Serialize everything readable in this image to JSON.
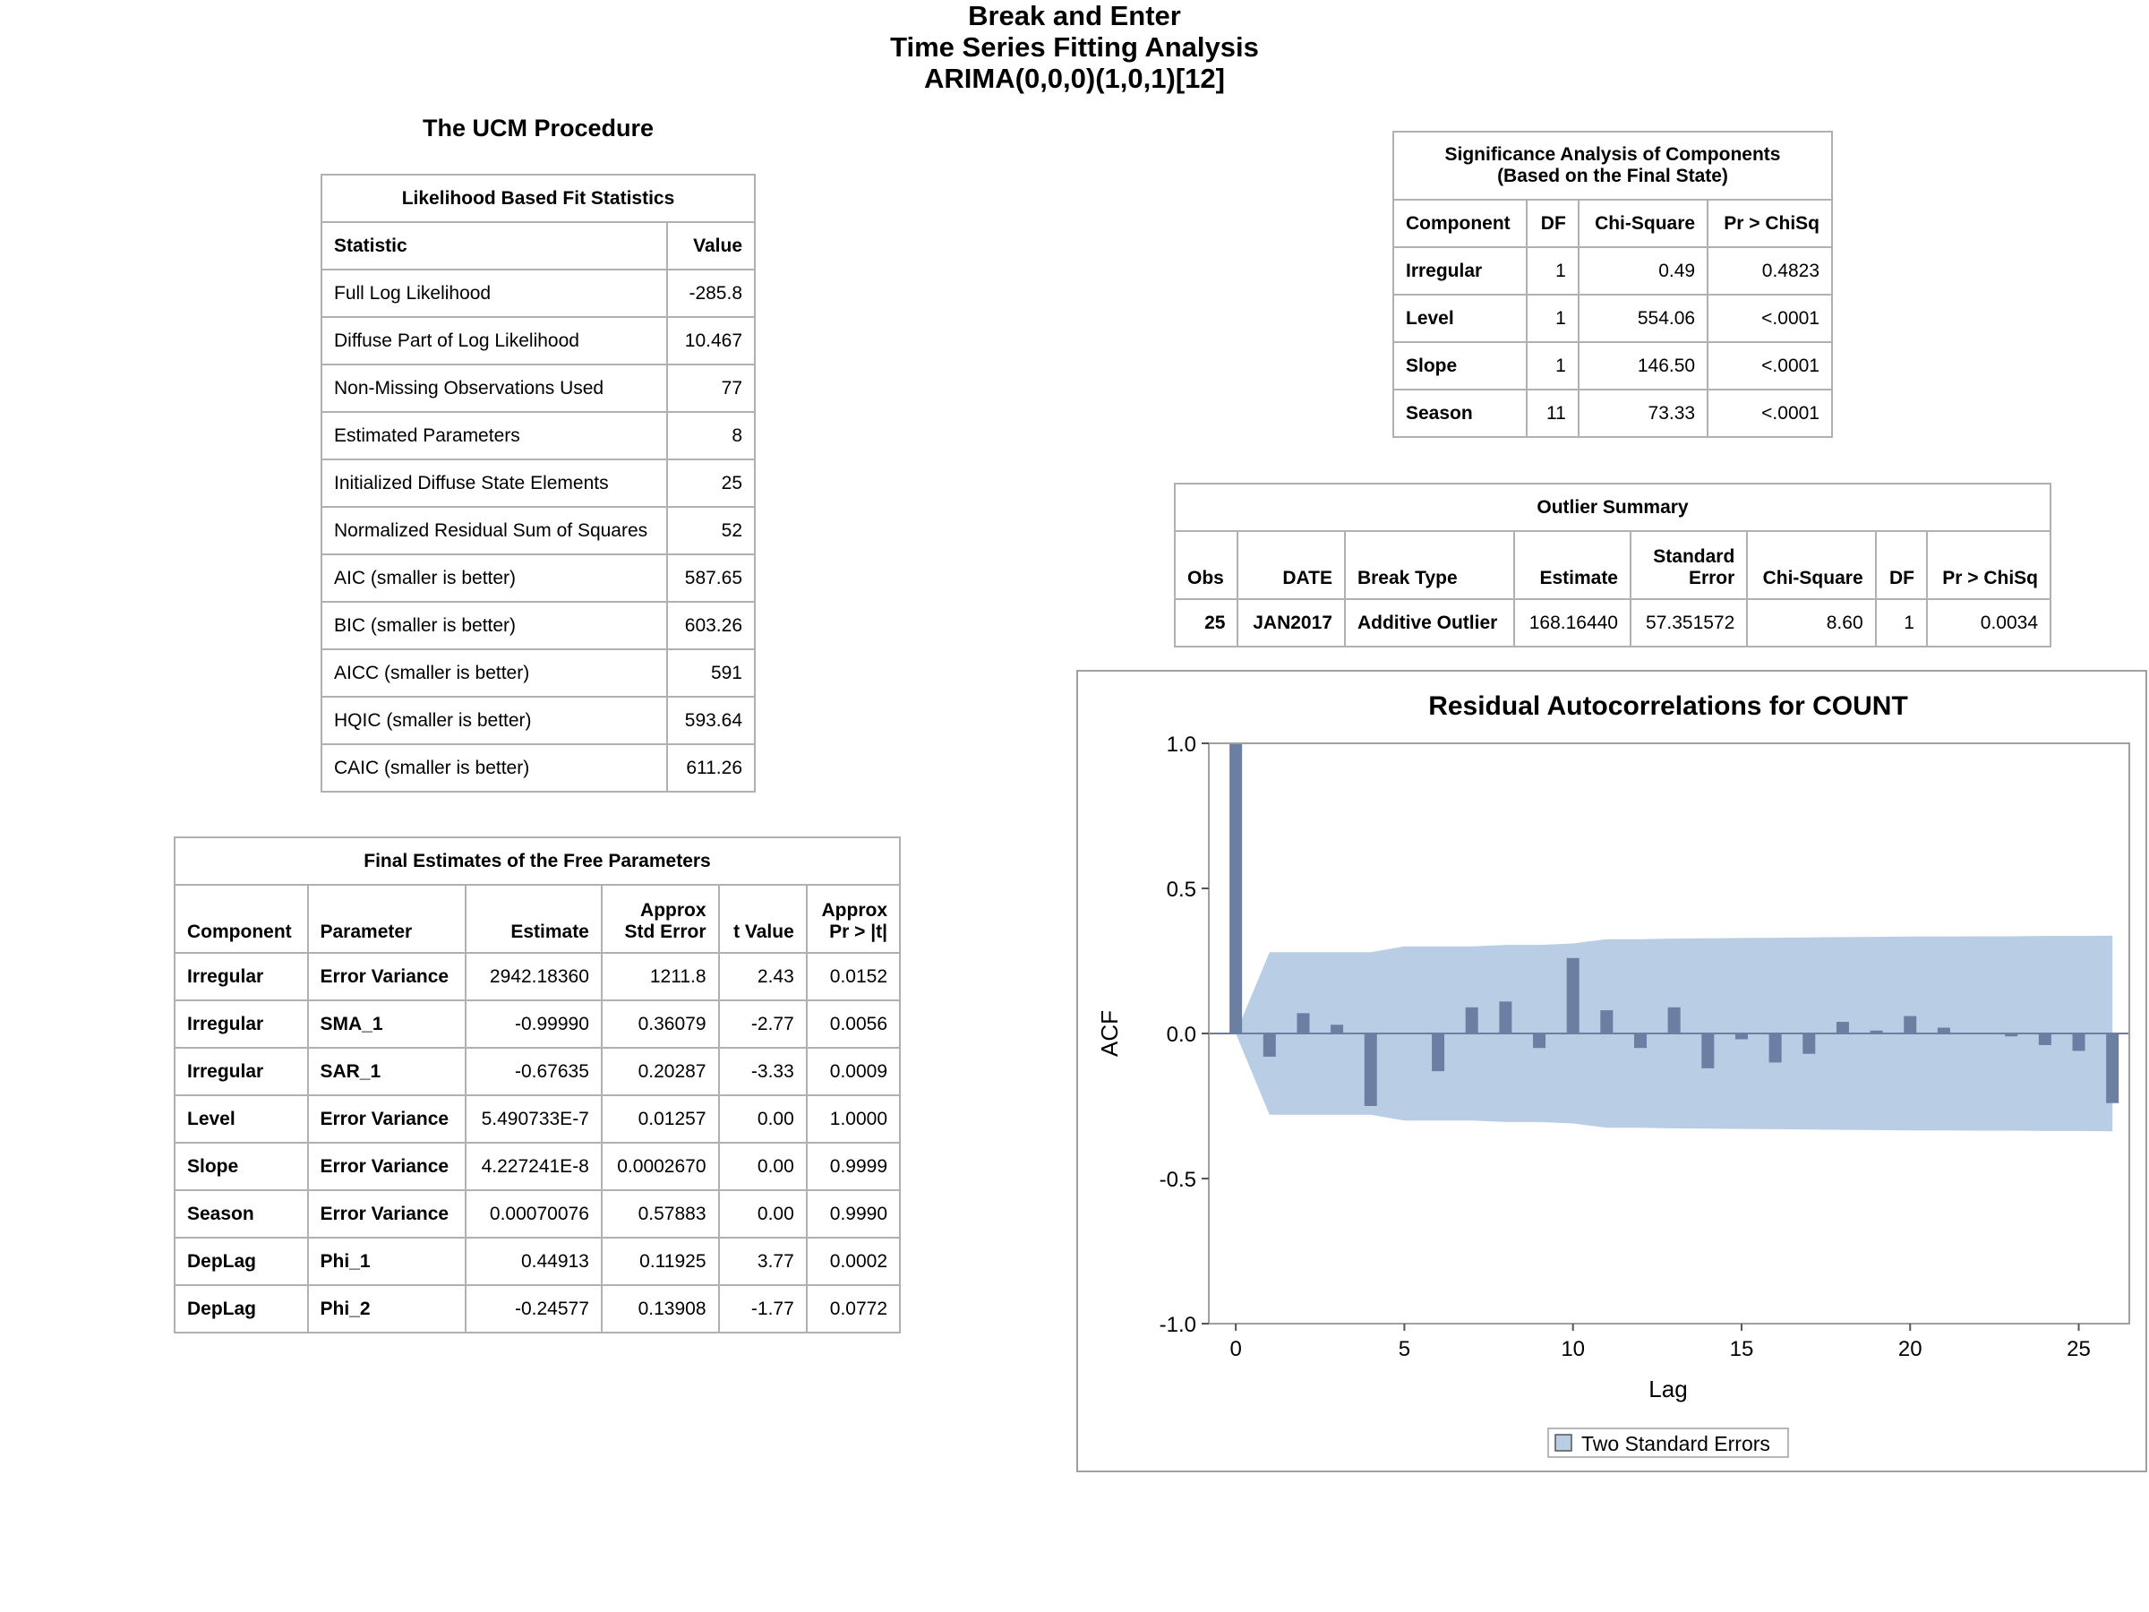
{
  "titles": [
    "Break and Enter",
    "Time Series Fitting Analysis",
    "ARIMA(0,0,0)(1,0,1)[12]"
  ],
  "procedure_title": "The UCM Procedure",
  "fit_stats": {
    "caption": "Likelihood Based Fit Statistics",
    "headers": [
      "Statistic",
      "Value"
    ],
    "rows": [
      [
        "Full Log Likelihood",
        "-285.8"
      ],
      [
        "Diffuse Part of Log Likelihood",
        "10.467"
      ],
      [
        "Non-Missing Observations Used",
        "77"
      ],
      [
        "Estimated Parameters",
        "8"
      ],
      [
        "Initialized Diffuse State Elements",
        "25"
      ],
      [
        "Normalized Residual Sum of Squares",
        "52"
      ],
      [
        "AIC (smaller is better)",
        "587.65"
      ],
      [
        "BIC (smaller is better)",
        "603.26"
      ],
      [
        "AICC (smaller is better)",
        "591"
      ],
      [
        "HQIC (smaller is better)",
        "593.64"
      ],
      [
        "CAIC (smaller is better)",
        "611.26"
      ]
    ]
  },
  "free_params": {
    "caption": "Final Estimates of the Free Parameters",
    "headers": [
      "Component",
      "Parameter",
      "Estimate",
      "Approx\nStd Error",
      "t Value",
      "Approx\nPr > |t|"
    ],
    "rows": [
      [
        "Irregular",
        "Error Variance",
        "2942.18360",
        "1211.8",
        "2.43",
        "0.0152"
      ],
      [
        "Irregular",
        "SMA_1",
        "-0.99990",
        "0.36079",
        "-2.77",
        "0.0056"
      ],
      [
        "Irregular",
        "SAR_1",
        "-0.67635",
        "0.20287",
        "-3.33",
        "0.0009"
      ],
      [
        "Level",
        "Error Variance",
        "5.490733E-7",
        "0.01257",
        "0.00",
        "1.0000"
      ],
      [
        "Slope",
        "Error Variance",
        "4.227241E-8",
        "0.0002670",
        "0.00",
        "0.9999"
      ],
      [
        "Season",
        "Error Variance",
        "0.00070076",
        "0.57883",
        "0.00",
        "0.9990"
      ],
      [
        "DepLag",
        "Phi_1",
        "0.44913",
        "0.11925",
        "3.77",
        "0.0002"
      ],
      [
        "DepLag",
        "Phi_2",
        "-0.24577",
        "0.13908",
        "-1.77",
        "0.0772"
      ]
    ]
  },
  "sig_components": {
    "caption_line1": "Significance Analysis of Components",
    "caption_line2": "(Based on the Final State)",
    "headers": [
      "Component",
      "DF",
      "Chi-Square",
      "Pr > ChiSq"
    ],
    "rows": [
      [
        "Irregular",
        "1",
        "0.49",
        "0.4823"
      ],
      [
        "Level",
        "1",
        "554.06",
        "<.0001"
      ],
      [
        "Slope",
        "1",
        "146.50",
        "<.0001"
      ],
      [
        "Season",
        "11",
        "73.33",
        "<.0001"
      ]
    ]
  },
  "outliers": {
    "caption": "Outlier Summary",
    "headers": [
      "Obs",
      "DATE",
      "Break Type",
      "Estimate",
      "Standard\nError",
      "Chi-Square",
      "DF",
      "Pr > ChiSq"
    ],
    "rows": [
      [
        "25",
        "JAN2017",
        "Additive Outlier",
        "168.16440",
        "57.351572",
        "8.60",
        "1",
        "0.0034"
      ]
    ]
  },
  "chart_data": {
    "type": "bar",
    "title": "Residual Autocorrelations for COUNT",
    "xlabel": "Lag",
    "ylabel": "ACF",
    "xlim": [
      -0.8,
      26.5
    ],
    "ylim": [
      -1.0,
      1.0
    ],
    "xticks": [
      0,
      5,
      10,
      15,
      20,
      25
    ],
    "yticks": [
      -1.0,
      -0.5,
      0.0,
      0.5,
      1.0
    ],
    "ytick_labels": [
      "-1.0",
      "-0.5",
      "0.0",
      "0.5",
      "1.0"
    ],
    "lags": [
      0,
      1,
      2,
      3,
      4,
      5,
      6,
      7,
      8,
      9,
      10,
      11,
      12,
      13,
      14,
      15,
      16,
      17,
      18,
      19,
      20,
      21,
      22,
      23,
      24,
      25,
      26
    ],
    "acf": [
      1.0,
      -0.08,
      0.07,
      0.03,
      -0.25,
      0.0,
      -0.13,
      0.09,
      0.11,
      -0.05,
      0.26,
      0.08,
      -0.05,
      0.09,
      -0.12,
      -0.02,
      -0.1,
      -0.07,
      0.04,
      0.01,
      0.06,
      0.02,
      0.0,
      -0.01,
      -0.04,
      -0.06,
      -0.24
    ],
    "band_lags": [
      0,
      1,
      2,
      3,
      4,
      5,
      6,
      7,
      8,
      9,
      10,
      11,
      12,
      13,
      14,
      15,
      16,
      17,
      18,
      19,
      20,
      21,
      22,
      23,
      24,
      25,
      26
    ],
    "two_se": [
      0.0,
      0.28,
      0.28,
      0.28,
      0.28,
      0.3,
      0.3,
      0.3,
      0.305,
      0.305,
      0.31,
      0.325,
      0.325,
      0.327,
      0.328,
      0.329,
      0.33,
      0.331,
      0.332,
      0.333,
      0.334,
      0.334,
      0.335,
      0.335,
      0.336,
      0.336,
      0.337
    ],
    "legend": "Two Standard Errors",
    "colors": {
      "bar": "#6a7fa2",
      "band": "#b9cde5",
      "zero_line": "#6a7fa2"
    }
  }
}
